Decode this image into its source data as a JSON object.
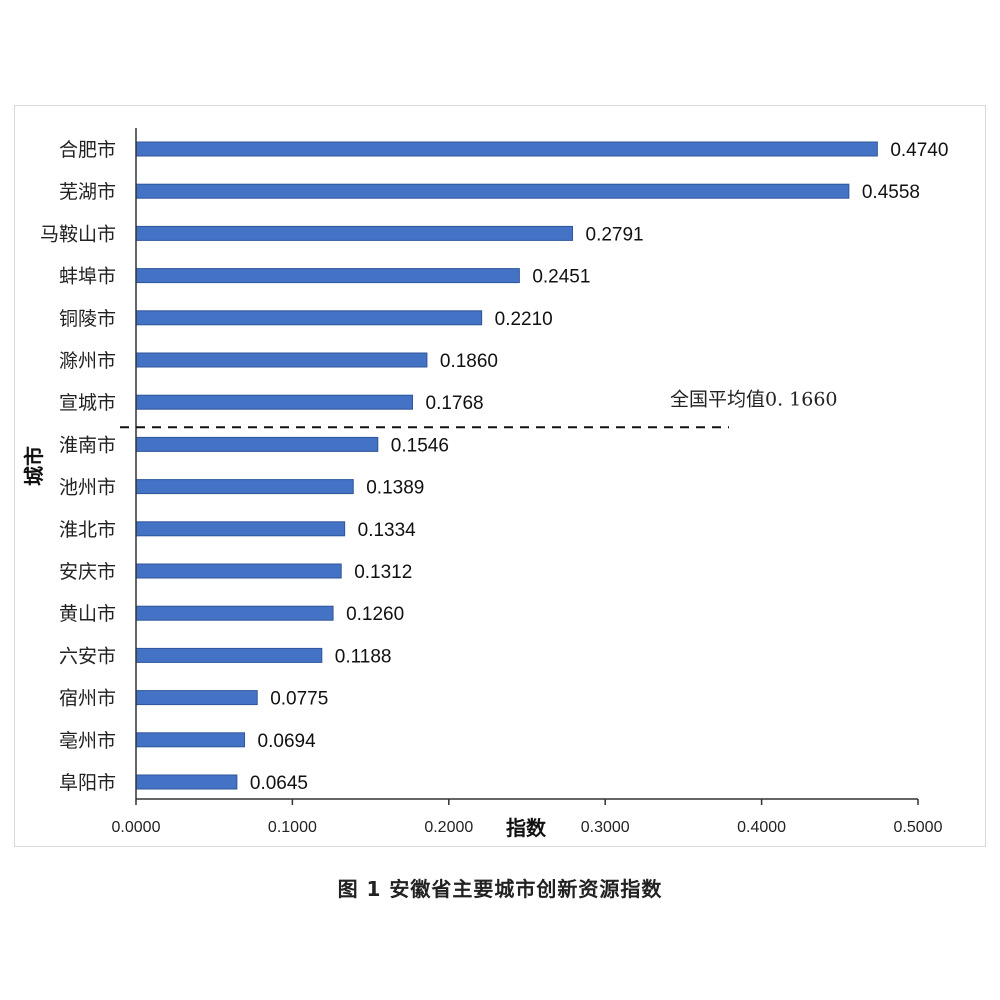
{
  "chart_data": {
    "type": "bar",
    "orientation": "horizontal",
    "categories": [
      "合肥市",
      "芜湖市",
      "马鞍山市",
      "蚌埠市",
      "铜陵市",
      "滁州市",
      "宣城市",
      "淮南市",
      "池州市",
      "淮北市",
      "安庆市",
      "黄山市",
      "六安市",
      "宿州市",
      "亳州市",
      "阜阳市"
    ],
    "values": [
      0.474,
      0.4558,
      0.2791,
      0.2451,
      0.221,
      0.186,
      0.1768,
      0.1546,
      0.1389,
      0.1334,
      0.1312,
      0.126,
      0.1188,
      0.0775,
      0.0694,
      0.0645
    ],
    "value_labels": [
      "0.4740",
      "0.4558",
      "0.2791",
      "0.2451",
      "0.2210",
      "0.1860",
      "0.1768",
      "0.1546",
      "0.1389",
      "0.1334",
      "0.1312",
      "0.1260",
      "0.1188",
      "0.0775",
      "0.0694",
      "0.0645"
    ],
    "xlabel": "指数",
    "ylabel": "城市",
    "xlim": [
      0,
      0.5
    ],
    "x_ticks": [
      "0.0000",
      "0.1000",
      "0.2000",
      "0.3000",
      "0.4000",
      "0.5000"
    ],
    "bar_color": "#4472C4",
    "grid": false,
    "reference_line": {
      "label": "全国平均值0. 1660",
      "position": "between 宣城市 and 淮南市",
      "style": "dashed"
    }
  },
  "caption": "图  1  安徽省主要城市创新资源指数"
}
